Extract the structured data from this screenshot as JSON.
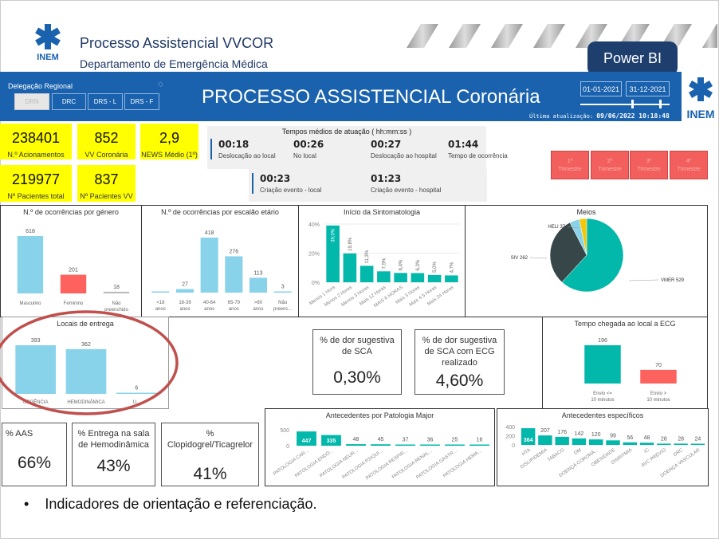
{
  "header": {
    "title": "Processo Assistencial VVCOR",
    "subtitle": "Departamento de Emergência Médica",
    "logo_text": "INEM",
    "powerbi_label": "Power BI"
  },
  "banner": {
    "delegacao_label": "Delegação Regional",
    "delegacoes": [
      "DRN",
      "DRC",
      "DRS - L",
      "DRS - F"
    ],
    "title": "PROCESSO ASSISTENCIAL Coronária",
    "date_start": "01-01-2021",
    "date_end": "31-12-2021",
    "update_label": "Última atualização:",
    "update_value": "09/06/2022 10:18:48",
    "logo_text": "INEM"
  },
  "kpis": [
    {
      "value": "238401",
      "label": "N.º Acionamentos"
    },
    {
      "value": "852",
      "label": "VV Coronária"
    },
    {
      "value": "2,9",
      "label": "NEWS Médio (1º)"
    },
    {
      "value": "219977",
      "label": "Nº Pacientes total"
    },
    {
      "value": "837",
      "label": "Nº Pacientes VV"
    }
  ],
  "tempos": {
    "title": "Tempos médios de atuação ( hh:mm:ss )",
    "items": [
      {
        "value": "00:18",
        "label": "Deslocação ao local"
      },
      {
        "value": "00:26",
        "label": "No local"
      },
      {
        "value": "00:27",
        "label": "Deslocação ao hospital"
      },
      {
        "value": "01:44",
        "label": "Tempo de ocorrência"
      },
      {
        "value": "00:23",
        "label": "Criação evento - local"
      },
      {
        "value": "01:23",
        "label": "Criação evento - hospital"
      }
    ]
  },
  "trimestres": [
    {
      "n": "1º",
      "l": "Trimestre"
    },
    {
      "n": "2º",
      "l": "Trimestre"
    },
    {
      "n": "3º",
      "l": "Trimestre"
    },
    {
      "n": "4º",
      "l": "Trimestre"
    }
  ],
  "colors": {
    "teal": "#01b8aa",
    "lightblue": "#89d3ea",
    "red": "#fd625e",
    "gray": "#bbbbbb",
    "dark": "#374649",
    "yellow": "#f2c80f",
    "blue": "#1a62ad"
  },
  "cards": [
    {
      "label": "% de dor sugestiva de SCA",
      "value": "0,30%"
    },
    {
      "label": "% de dor sugestiva de SCA com ECG realizado",
      "value": "4,60%"
    },
    {
      "label": "% AAS",
      "value": "66%"
    },
    {
      "label": "% Entrega na sala de Hemodinâmica",
      "value": "43%"
    },
    {
      "label": "% Clopidogrel/Ticagrelor",
      "value": "41%"
    }
  ],
  "bullet": "Indicadores de orientação e referenciação.",
  "chart_data": [
    {
      "type": "bar",
      "title": "N.º de ocorrências por género",
      "categories": [
        "Masculino",
        "Feminino",
        "Não preenchido"
      ],
      "values": [
        618,
        201,
        18
      ],
      "colors": [
        "#89d3ea",
        "#fd625e",
        "#bbbbbb"
      ]
    },
    {
      "type": "bar",
      "title": "N.º de ocorrências por escalão etário",
      "categories": [
        "<18 anos",
        "18-39 anos",
        "40-64 anos",
        "65-79 anos",
        ">80 anos",
        "Não preenc..."
      ],
      "values": [
        0,
        27,
        418,
        276,
        113,
        3
      ]
    },
    {
      "type": "bar",
      "title": "Início da Sintomatologia",
      "categories": [
        "Menos 1 Hora",
        "Menos 2 Horas",
        "Menos 3 Horas",
        "Mais 12 Horas",
        "MAIS 6 HORAS",
        "Mais 3 Horas",
        "Mais 4.5 Horas",
        "Mais 24 Horas"
      ],
      "values": [
        39.0,
        19.8,
        11.3,
        7.5,
        6.4,
        6.3,
        5.0,
        4.7
      ],
      "value_labels": [
        "39,0%",
        "19,8%",
        "11,3%",
        "7,5%",
        "6,4%",
        "6,3%",
        "5,0%",
        "4,7%"
      ],
      "yticks": [
        "0%",
        "20%",
        "40%"
      ],
      "ylim": [
        0,
        40
      ]
    },
    {
      "type": "pie",
      "title": "Meios",
      "slices": [
        {
          "label": "VMER 529",
          "value": 529,
          "color": "#01b8aa"
        },
        {
          "label": "SIV 262",
          "value": 262,
          "color": "#374649"
        },
        {
          "label": "HELI 37",
          "value": 37,
          "color": "#89d3ea"
        },
        {
          "label": "",
          "value": 28,
          "color": "#f2c80f"
        }
      ]
    },
    {
      "type": "bar",
      "title": "Locais de entrega",
      "categories": [
        "URGÊNCIA",
        "HEMODINÂMICA",
        "U..."
      ],
      "values": [
        393,
        362,
        6
      ]
    },
    {
      "type": "bar",
      "title": "Tempo chegada ao local a ECG",
      "categories": [
        "Envio <= 10 minutos",
        "Envio > 10 minutos"
      ],
      "values": [
        196,
        70
      ],
      "colors": [
        "#01b8aa",
        "#fd625e"
      ]
    },
    {
      "type": "bar",
      "title": "Antecedentes por Patologia Major",
      "categories": [
        "PATOLOGIA CAR...",
        "PATOLOGIA ENDÓ...",
        "PATOLOGIA NEUR...",
        "PATOLOGIA PSIQUI...",
        "PATOLOGIA RESPIR...",
        "PATOLOGIA RENAL...",
        "PATOLOGIA GASTR...",
        "PATOLOGIA HEMA..."
      ],
      "values": [
        447,
        335,
        48,
        45,
        37,
        36,
        25,
        16
      ],
      "yticks": [
        "0",
        "500"
      ],
      "ylim": [
        0,
        500
      ]
    },
    {
      "type": "bar",
      "title": "Antecedentes específicos",
      "categories": [
        "HTA",
        "DISLIPIDEMIA",
        "TABACO",
        "DM",
        "DOENÇA CORONÁ...",
        "OBESIDADE",
        "DISRITMIA",
        "IC",
        "AVC PRÉVIO",
        "DRC",
        "DOENÇA VASCULAR"
      ],
      "values": [
        364,
        207,
        176,
        142,
        120,
        99,
        56,
        48,
        28,
        28,
        24
      ],
      "yticks": [
        "0",
        "200",
        "400"
      ],
      "ylim": [
        0,
        400
      ]
    }
  ]
}
